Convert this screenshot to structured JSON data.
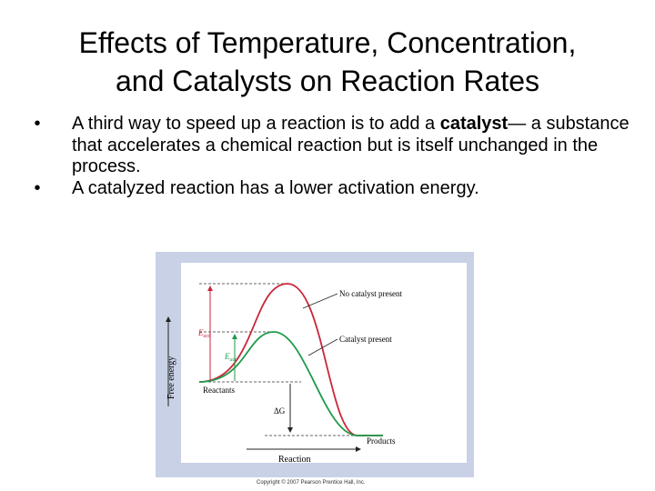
{
  "title": {
    "line1": "Effects of Temperature, Concentration,",
    "line2": "and Catalysts on Reaction Rates"
  },
  "bullets": [
    {
      "before": "A third way to speed up a reaction is to add a ",
      "bold": "catalyst",
      "after": "— a substance that accelerates a chemical reaction but is itself unchanged in the process."
    },
    {
      "text": "A catalyzed reaction has a lower activation energy."
    }
  ],
  "figure": {
    "y_axis_label": "Free energy",
    "x_axis_label": "Reaction",
    "label_no_catalyst": "No catalyst present",
    "label_catalyst": "Catalyst present",
    "label_reactants": "Reactants",
    "label_products": "Products",
    "label_eact": "E",
    "label_eact_sub": "act",
    "label_delta_g": "ΔG",
    "colors": {
      "panel_bg": "#c9d1e6",
      "plot_bg": "#ffffff",
      "uncatalyzed": "#c9263a",
      "catalyzed": "#1f9a4a"
    }
  },
  "copyright": "Copyright © 2007 Pearson Prentice Hall, Inc."
}
